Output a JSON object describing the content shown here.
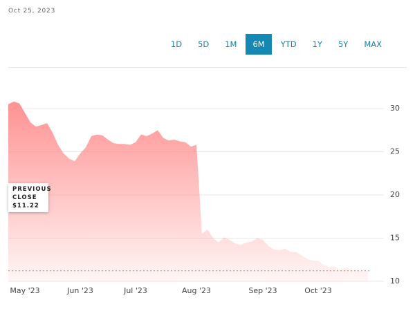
{
  "date": "Oct 25, 2023",
  "ranges": [
    "1D",
    "5D",
    "1M",
    "6M",
    "YTD",
    "1Y",
    "5Y",
    "MAX"
  ],
  "selected_range": "6M",
  "chart_data": {
    "type": "area",
    "categories": [
      null,
      null,
      null,
      "May '23",
      null,
      null,
      null,
      null,
      null,
      null,
      null,
      null,
      null,
      "Jun '23",
      null,
      null,
      null,
      null,
      null,
      null,
      null,
      null,
      null,
      "Jul '23",
      null,
      null,
      null,
      null,
      null,
      null,
      null,
      null,
      null,
      null,
      "Aug '23",
      null,
      null,
      null,
      null,
      null,
      null,
      null,
      null,
      null,
      null,
      null,
      "Sep '23",
      null,
      null,
      null,
      null,
      null,
      null,
      null,
      null,
      null,
      "Oct '23",
      null,
      null,
      null,
      null,
      null,
      null,
      null,
      null,
      null
    ],
    "series": [
      {
        "color": "#ff8c8c",
        "values": [
          30.5,
          30.8,
          30.6,
          29.5,
          28.4,
          27.9,
          28.1,
          28.3,
          27.2,
          25.8,
          24.8,
          24.2,
          23.9,
          24.8,
          25.5,
          26.8,
          27.0,
          26.9,
          26.4,
          26.0,
          25.9,
          25.9,
          25.8,
          26.1,
          27.0,
          26.8,
          27.1,
          27.5,
          26.6,
          26.3,
          26.4,
          26.2,
          26.1,
          25.6,
          25.8,
          15.5,
          16.0,
          15.0,
          14.5,
          15.1,
          14.8,
          14.4,
          14.2,
          14.5,
          14.6,
          15.0,
          14.8,
          14.1,
          13.7,
          13.6,
          13.8,
          13.4,
          13.4,
          13.0,
          12.6,
          12.4,
          12.4,
          11.9,
          11.7,
          11.7,
          11.3,
          11.6,
          11.3,
          11.3,
          11.1,
          11.2
        ]
      }
    ],
    "ylim": [
      10,
      32
    ],
    "yticks": [
      10,
      15,
      20,
      25,
      30
    ],
    "grid": true,
    "previous_close": {
      "label": "PREVIOUS CLOSE",
      "value": 11.22,
      "value_label": "$11.22"
    }
  }
}
